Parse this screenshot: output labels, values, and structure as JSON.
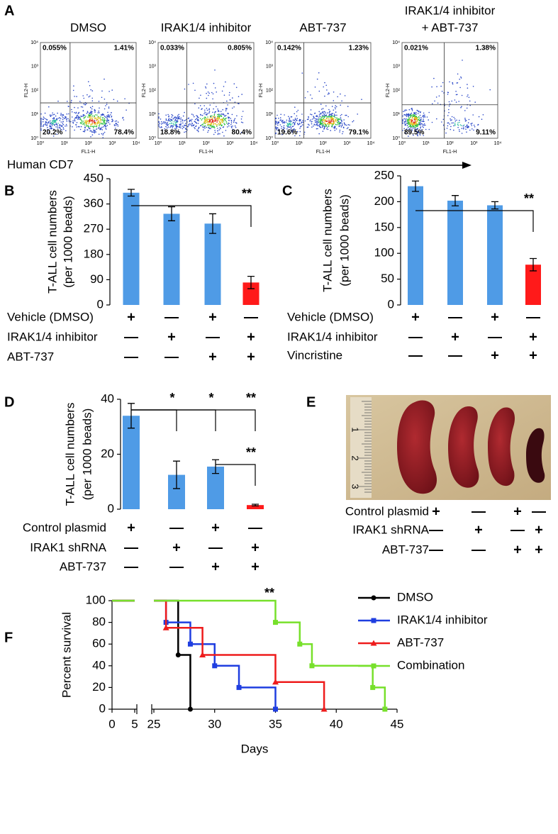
{
  "panel_labels": {
    "a": "A",
    "b": "B",
    "c": "C",
    "d": "D",
    "e": "E",
    "f": "F"
  },
  "panel_a": {
    "plots": [
      {
        "title": [
          "DMSO"
        ],
        "quadrants": {
          "upper_left": "0.055%",
          "upper_right": "1.41%",
          "lower_left": "20.2%",
          "lower_right": "78.4%"
        }
      },
      {
        "title": [
          "IRAK1/4 inhibitor"
        ],
        "quadrants": {
          "upper_left": "0.033%",
          "upper_right": "0.805%",
          "lower_left": "18.8%",
          "lower_right": "80.4%"
        }
      },
      {
        "title": [
          "ABT-737"
        ],
        "quadrants": {
          "upper_left": "0.142%",
          "upper_right": "1.23%",
          "lower_left": "19.6%",
          "lower_right": "79.1%"
        }
      },
      {
        "title": [
          "IRAK1/4 inhibitor",
          "+ ABT-737"
        ],
        "quadrants": {
          "upper_left": "0.021%",
          "upper_right": "1.38%",
          "lower_left": "89.5%",
          "lower_right": "9.11%"
        }
      }
    ],
    "x_axis": "FL1-H",
    "y_axis": "FL2-H",
    "ticks": [
      "10⁰",
      "10¹",
      "10²",
      "10³",
      "10⁴"
    ],
    "axis_label": "Human CD7"
  },
  "chart_data": [
    {
      "type": "bar",
      "ylabel": [
        "T-ALL cell numbers",
        "(per 1000 beads)"
      ],
      "values": [
        400,
        325,
        290,
        80
      ],
      "errors": [
        12,
        25,
        35,
        22
      ],
      "colors": [
        "#4f9be6",
        "#4f9be6",
        "#4f9be6",
        "#ff1a1a"
      ],
      "ylim": [
        0,
        450
      ],
      "yticks": [
        0,
        90,
        180,
        270,
        360,
        450
      ],
      "significance": [
        {
          "label": "**",
          "from": 0,
          "to": 3
        }
      ],
      "treatments": [
        {
          "label": "Vehicle (DMSO)",
          "signs": [
            "+",
            "—",
            "+",
            "—"
          ]
        },
        {
          "label": "IRAK1/4 inhibitor",
          "signs": [
            "—",
            "+",
            "—",
            "+"
          ]
        },
        {
          "label": "ABT-737",
          "signs": [
            "—",
            "—",
            "+",
            "+"
          ]
        }
      ],
      "sign_colors": [
        "#000000",
        "#000000",
        "#000000",
        "#e8251f"
      ]
    },
    {
      "type": "bar",
      "ylabel": [
        "T-ALL cell numbers",
        "(per 1000 beads)"
      ],
      "values": [
        230,
        202,
        193,
        78
      ],
      "errors": [
        10,
        10,
        7,
        12
      ],
      "colors": [
        "#4f9be6",
        "#4f9be6",
        "#4f9be6",
        "#ff1a1a"
      ],
      "ylim": [
        0,
        250
      ],
      "yticks": [
        0,
        50,
        100,
        150,
        200,
        250
      ],
      "significance": [
        {
          "label": "**",
          "from": 0,
          "to": 3
        }
      ],
      "treatments": [
        {
          "label": "Vehicle (DMSO)",
          "signs": [
            "+",
            "—",
            "+",
            "—"
          ]
        },
        {
          "label": "IRAK1/4 inhibitor",
          "signs": [
            "—",
            "+",
            "—",
            "+"
          ]
        },
        {
          "label": "Vincristine",
          "signs": [
            "—",
            "—",
            "+",
            "+"
          ]
        }
      ],
      "sign_colors": [
        "#000000",
        "#000000",
        "#000000",
        "#e8251f"
      ]
    },
    {
      "type": "bar",
      "ylabel": [
        "T-ALL cell numbers",
        "(per 1000 beads)"
      ],
      "values": [
        34,
        12.5,
        15.5,
        1.5
      ],
      "errors": [
        4.5,
        5,
        2.5,
        0.3
      ],
      "colors": [
        "#4f9be6",
        "#4f9be6",
        "#4f9be6",
        "#ff1a1a"
      ],
      "ylim": [
        0,
        40
      ],
      "yticks": [
        0,
        20,
        40
      ],
      "significance": [
        {
          "label": "*",
          "from": 0,
          "to": 1
        },
        {
          "label": "*",
          "from": 0,
          "to": 2
        },
        {
          "label": "**",
          "from": 0,
          "to": 3
        },
        {
          "label": "**",
          "from": 2,
          "to": 3
        }
      ],
      "treatments": [
        {
          "label": "Control plasmid",
          "signs": [
            "+",
            "—",
            "+",
            "—"
          ]
        },
        {
          "label": "IRAK1 shRNA",
          "signs": [
            "—",
            "+",
            "—",
            "+"
          ]
        },
        {
          "label": "ABT-737",
          "signs": [
            "—",
            "—",
            "+",
            "+"
          ]
        }
      ],
      "sign_colors": [
        "#000000",
        "#000000",
        "#000000",
        "#e8251f"
      ]
    },
    {
      "type": "line",
      "step": true,
      "xlabel": "Days",
      "ylabel": "Percent survival",
      "xlim": [
        0,
        45
      ],
      "axis_break": [
        5,
        25
      ],
      "xticks": [
        0,
        5,
        25,
        30,
        35,
        40,
        45
      ],
      "ylim": [
        0,
        100
      ],
      "yticks": [
        0,
        20,
        40,
        60,
        80,
        100
      ],
      "annotation": "**",
      "legend": "upper right",
      "series": [
        {
          "name": "DMSO",
          "color": "#000000",
          "marker": "circle",
          "x": [
            0,
            27,
            28
          ],
          "values": [
            100,
            50,
            0
          ]
        },
        {
          "name": "IRAK1/4 inhibitor",
          "color": "#1f3ee0",
          "marker": "square",
          "x": [
            0,
            26,
            28,
            30,
            32,
            35
          ],
          "values": [
            100,
            80,
            60,
            40,
            20,
            0
          ]
        },
        {
          "name": "ABT-737",
          "color": "#ee1c1c",
          "marker": "triangle",
          "x": [
            0,
            26,
            29,
            35,
            39
          ],
          "values": [
            100,
            75,
            50,
            25,
            0
          ]
        },
        {
          "name": "Combination",
          "color": "#77e02b",
          "marker": "square",
          "x": [
            0,
            35,
            37,
            38,
            43,
            44
          ],
          "values": [
            100,
            80,
            60,
            40,
            20,
            0
          ]
        }
      ]
    }
  ],
  "panel_e": {
    "ruler_labels": [
      "1",
      "2",
      "3"
    ],
    "treatments": [
      {
        "label": "Control plasmid",
        "signs": [
          "+",
          "—",
          "+",
          "—"
        ]
      },
      {
        "label": "IRAK1 shRNA",
        "signs": [
          "—",
          "+",
          "—",
          "+"
        ]
      },
      {
        "label": "ABT-737",
        "signs": [
          "—",
          "—",
          "+",
          "+"
        ]
      }
    ],
    "sign_colors": [
      "#000000",
      "#000000",
      "#000000",
      "#e8251f"
    ]
  }
}
